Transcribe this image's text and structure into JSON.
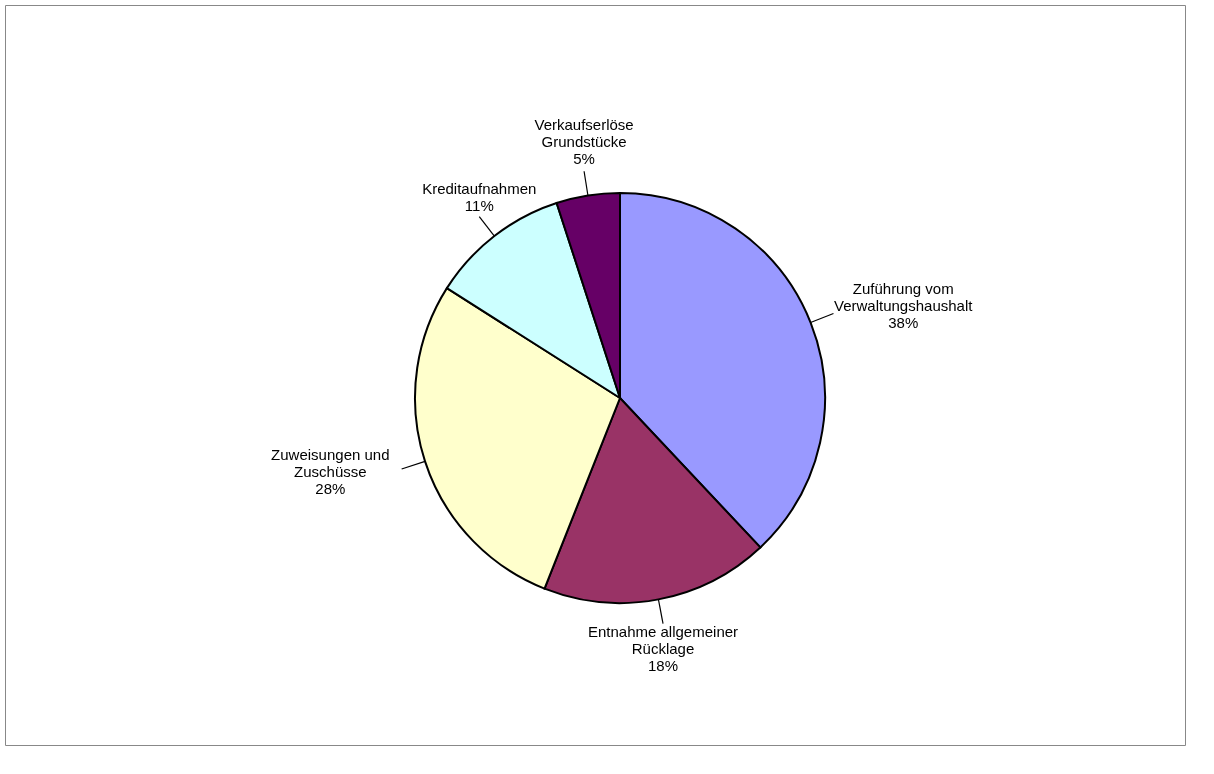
{
  "chart_data": {
    "type": "pie",
    "categories": [
      "Zuführung vom Verwaltungshaushalt",
      "Entnahme allgemeiner Rücklage",
      "Zuweisungen und Zuschüsse",
      "Kreditaufnahmen",
      "Verkaufserlöse Grundstücke"
    ],
    "values": [
      38,
      18,
      28,
      11,
      5
    ],
    "colors": [
      "#9999ff",
      "#993366",
      "#ffffcc",
      "#ccffff",
      "#660066"
    ],
    "value_labels": [
      "38%",
      "18%",
      "28%",
      "11%",
      "5%"
    ],
    "legend": false
  }
}
